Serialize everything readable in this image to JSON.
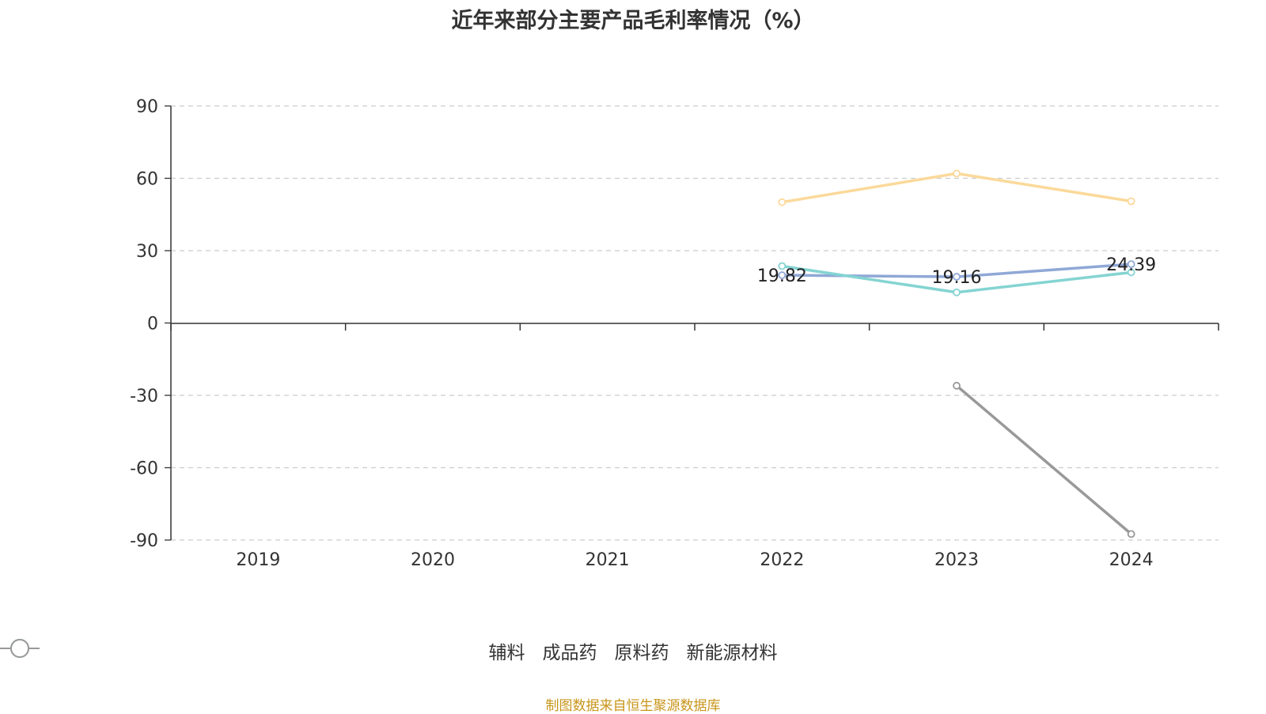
{
  "chart_data": {
    "type": "line",
    "title": "近年来部分主要产品毛利率情况（%）",
    "categories": [
      "2019",
      "2020",
      "2021",
      "2022",
      "2023",
      "2024"
    ],
    "ylim": [
      -90,
      90
    ],
    "yticks": [
      90,
      60,
      30,
      0,
      -30,
      -60,
      -90
    ],
    "grid": true,
    "legend_position": "bottom",
    "series": [
      {
        "name": "辅料",
        "color": "#8fa8d6",
        "values": [
          null,
          null,
          null,
          19.82,
          19.16,
          24.39
        ],
        "labels": [
          null,
          null,
          null,
          "19.82",
          "19.16",
          "24.39"
        ]
      },
      {
        "name": "成品药",
        "color": "#fbd99a",
        "values": [
          null,
          null,
          null,
          50.1,
          62.0,
          50.5
        ]
      },
      {
        "name": "原料药",
        "color": "#84d4d2",
        "values": [
          null,
          null,
          null,
          23.6,
          12.7,
          21.0
        ]
      },
      {
        "name": "新能源材料",
        "color": "#999999",
        "values": [
          null,
          null,
          null,
          null,
          -26.0,
          -87.5
        ]
      }
    ]
  },
  "source_text": "制图数据来自恒生聚源数据库"
}
